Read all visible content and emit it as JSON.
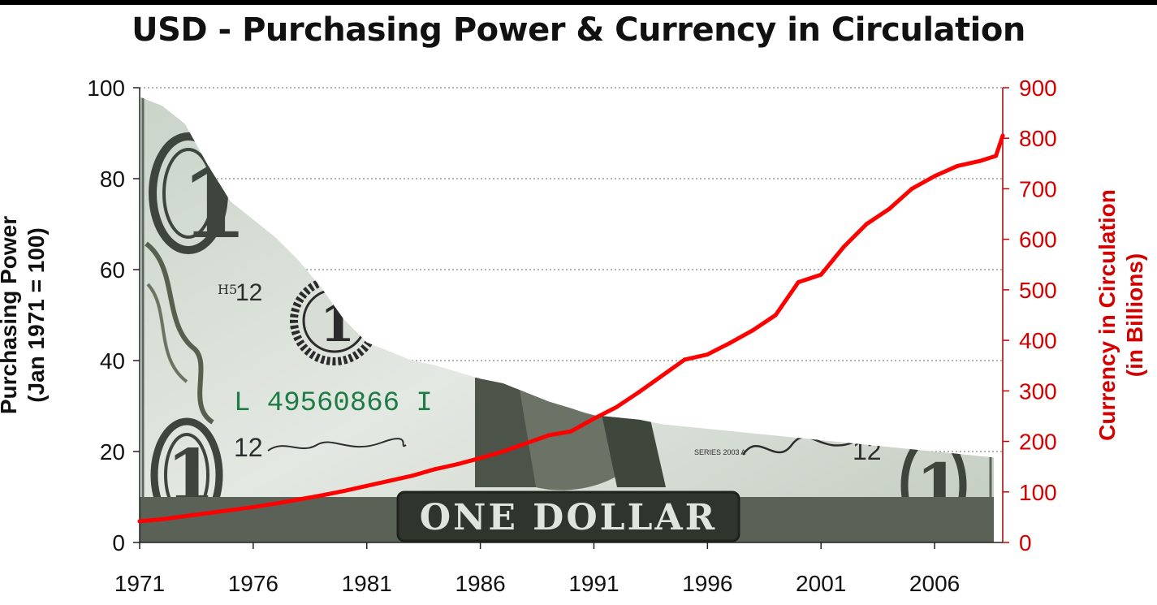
{
  "chart_data": {
    "type": "line",
    "title": "USD - Purchasing Power & Currency in Circulation",
    "x_ticks": [
      "1971",
      "1976",
      "1981",
      "1986",
      "1991",
      "1996",
      "2001",
      "2006"
    ],
    "xlim": [
      1971,
      2009
    ],
    "y_left": {
      "label_line1": "Purchasing Power",
      "label_line2": "(Jan 1971 = 100)",
      "ticks": [
        0,
        20,
        40,
        60,
        80,
        100
      ],
      "lim": [
        0,
        100
      ]
    },
    "y_right": {
      "label_line1": "Currency in Circulation",
      "label_line2": "(in Billions)",
      "ticks": [
        0,
        100,
        200,
        300,
        400,
        500,
        600,
        700,
        800,
        900
      ],
      "lim": [
        0,
        900
      ],
      "color": "#d40000"
    },
    "grid": true,
    "series": [
      {
        "axis": "left",
        "style": "area (dollar bill image)",
        "x": [
          1971,
          1972,
          1973,
          1974,
          1975,
          1976,
          1977,
          1978,
          1979,
          1980,
          1981,
          1982,
          1983,
          1984,
          1985,
          1986,
          1987,
          1988,
          1989,
          1990,
          1991,
          1992,
          1993,
          1994,
          1995,
          1996,
          1997,
          1998,
          1999,
          2000,
          2001,
          2002,
          2003,
          2004,
          2005,
          2006,
          2007,
          2008,
          2009
        ],
        "values": [
          98,
          96,
          92,
          83,
          75,
          71,
          67,
          62,
          56,
          49,
          44,
          42,
          40,
          39,
          37.5,
          36,
          35,
          33,
          31,
          29.5,
          28,
          27.5,
          27,
          26,
          25.5,
          25,
          24.5,
          24,
          23.5,
          23,
          22.5,
          22,
          21.5,
          21,
          20.5,
          20,
          19.5,
          19,
          18.5
        ]
      },
      {
        "axis": "right",
        "color": "#ff0000",
        "x": [
          1971,
          1972,
          1973,
          1974,
          1975,
          1976,
          1977,
          1978,
          1979,
          1980,
          1981,
          1982,
          1983,
          1984,
          1985,
          1986,
          1987,
          1988,
          1989,
          1990,
          1991,
          1992,
          1993,
          1994,
          1995,
          1996,
          1997,
          1998,
          1999,
          2000,
          2001,
          2002,
          2003,
          2004,
          2005,
          2006,
          2007,
          2008,
          2008.7,
          2009
        ],
        "values": [
          42,
          46,
          52,
          58,
          64,
          70,
          77,
          85,
          93,
          102,
          112,
          122,
          132,
          145,
          155,
          167,
          180,
          196,
          212,
          220,
          245,
          268,
          298,
          330,
          362,
          372,
          395,
          420,
          450,
          515,
          530,
          585,
          630,
          660,
          700,
          725,
          745,
          755,
          765,
          805
        ]
      }
    ],
    "bill_texts": {
      "serial": "L 49560866 I",
      "denomination": "ONE DOLLAR",
      "federal_reserve_number": "12",
      "bank_code": "H5"
    }
  }
}
